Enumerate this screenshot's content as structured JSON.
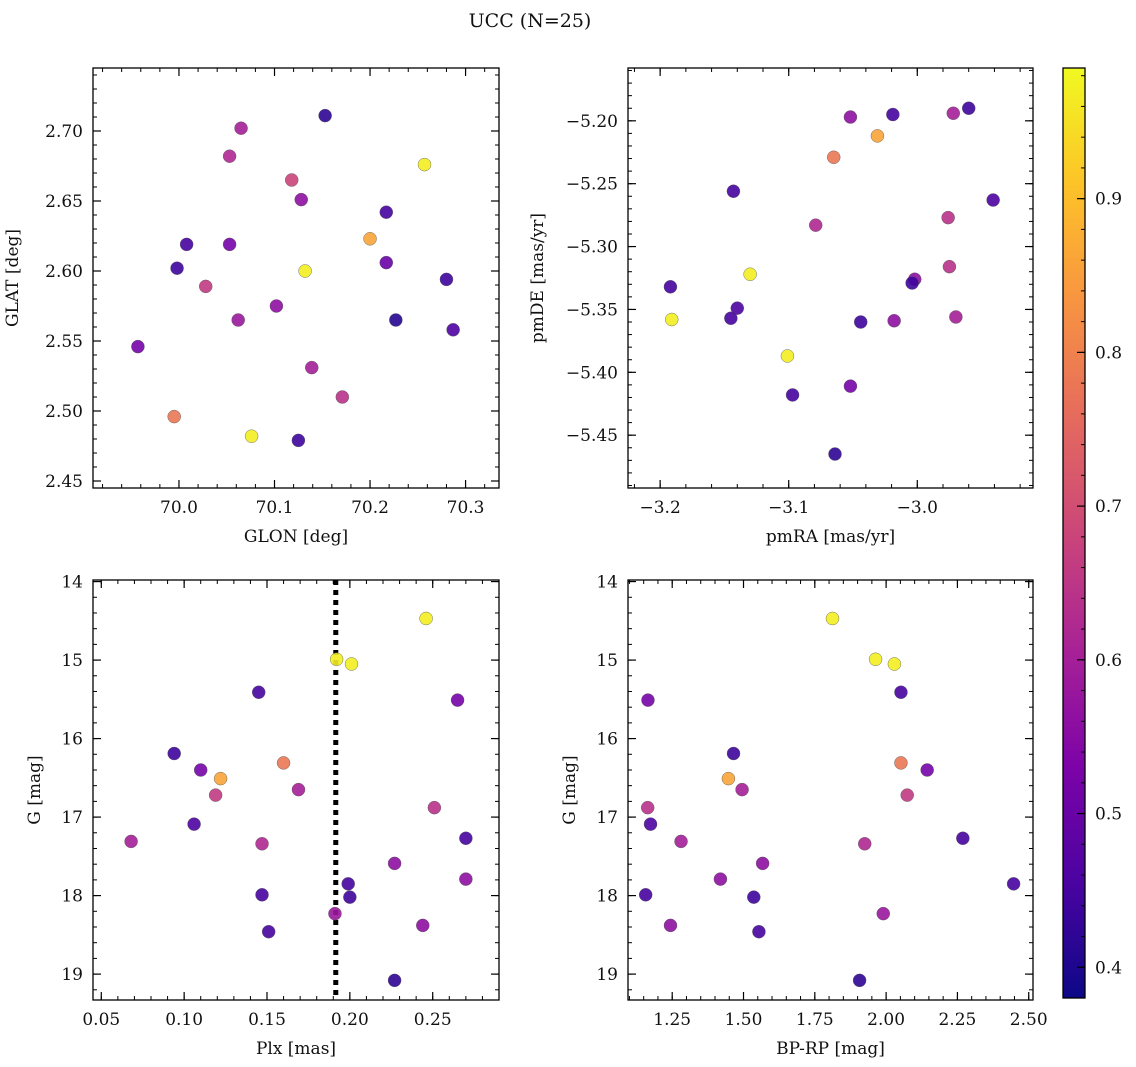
{
  "figure": {
    "title": "UCC (N=25)"
  },
  "colorbar": {
    "colormap": "plasma",
    "vmin": 0.38,
    "vmax": 0.985,
    "ticks": [
      0.4,
      0.5,
      0.6,
      0.7,
      0.8,
      0.9
    ]
  },
  "chart_data": [
    {
      "type": "scatter",
      "name": "glon-glat",
      "xlabel": "GLON [deg]",
      "ylabel": "GLAT [deg]",
      "xlim": [
        69.91,
        70.335
      ],
      "ylim": [
        2.445,
        2.745
      ],
      "xticks": [
        70.0,
        70.1,
        70.2,
        70.3
      ],
      "xtick_labels": [
        "70.0",
        "70.1",
        "70.2",
        "70.3"
      ],
      "yticks": [
        2.45,
        2.5,
        2.55,
        2.6,
        2.65,
        2.7
      ],
      "ytick_labels": [
        "2.45",
        "2.50",
        "2.55",
        "2.60",
        "2.65",
        "2.70"
      ],
      "y_inverted": false,
      "points": [
        {
          "x": 70.153,
          "y": 2.711,
          "c": 0.42
        },
        {
          "x": 70.065,
          "y": 2.702,
          "c": 0.6
        },
        {
          "x": 70.053,
          "y": 2.682,
          "c": 0.62
        },
        {
          "x": 70.257,
          "y": 2.676,
          "c": 0.97
        },
        {
          "x": 70.118,
          "y": 2.665,
          "c": 0.68
        },
        {
          "x": 70.128,
          "y": 2.651,
          "c": 0.56
        },
        {
          "x": 70.217,
          "y": 2.642,
          "c": 0.45
        },
        {
          "x": 70.2,
          "y": 2.623,
          "c": 0.86
        },
        {
          "x": 70.008,
          "y": 2.619,
          "c": 0.45
        },
        {
          "x": 70.053,
          "y": 2.619,
          "c": 0.52
        },
        {
          "x": 70.217,
          "y": 2.606,
          "c": 0.5
        },
        {
          "x": 69.998,
          "y": 2.602,
          "c": 0.44
        },
        {
          "x": 70.132,
          "y": 2.6,
          "c": 0.97
        },
        {
          "x": 70.28,
          "y": 2.594,
          "c": 0.44
        },
        {
          "x": 70.028,
          "y": 2.589,
          "c": 0.66
        },
        {
          "x": 70.102,
          "y": 2.575,
          "c": 0.56
        },
        {
          "x": 70.062,
          "y": 2.565,
          "c": 0.58
        },
        {
          "x": 70.227,
          "y": 2.565,
          "c": 0.41
        },
        {
          "x": 70.287,
          "y": 2.558,
          "c": 0.46
        },
        {
          "x": 69.957,
          "y": 2.546,
          "c": 0.52
        },
        {
          "x": 70.139,
          "y": 2.531,
          "c": 0.6
        },
        {
          "x": 70.171,
          "y": 2.51,
          "c": 0.64
        },
        {
          "x": 69.995,
          "y": 2.496,
          "c": 0.78
        },
        {
          "x": 70.076,
          "y": 2.482,
          "c": 0.97
        },
        {
          "x": 70.125,
          "y": 2.479,
          "c": 0.44
        }
      ]
    },
    {
      "type": "scatter",
      "name": "pmra-pmde",
      "xlabel": "pmRA [mas/yr]",
      "ylabel": "pmDE [mas/yr]",
      "xlim": [
        -3.225,
        -2.91
      ],
      "ylim": [
        -5.492,
        -5.158
      ],
      "xticks": [
        -3.2,
        -3.1,
        -3.0
      ],
      "xtick_labels": [
        "−3.2",
        "−3.1",
        "−3.0"
      ],
      "yticks": [
        -5.45,
        -5.4,
        -5.35,
        -5.3,
        -5.25,
        -5.2
      ],
      "ytick_labels": [
        "−5.45",
        "−5.40",
        "−5.35",
        "−5.30",
        "−5.25",
        "−5.20"
      ],
      "y_inverted": false,
      "points": [
        {
          "x": -2.96,
          "y": -5.19,
          "c": 0.44
        },
        {
          "x": -2.972,
          "y": -5.194,
          "c": 0.6
        },
        {
          "x": -3.019,
          "y": -5.195,
          "c": 0.45
        },
        {
          "x": -3.052,
          "y": -5.197,
          "c": 0.56
        },
        {
          "x": -3.031,
          "y": -5.212,
          "c": 0.86
        },
        {
          "x": -3.065,
          "y": -5.229,
          "c": 0.78
        },
        {
          "x": -3.143,
          "y": -5.256,
          "c": 0.45
        },
        {
          "x": -2.941,
          "y": -5.263,
          "c": 0.46
        },
        {
          "x": -2.976,
          "y": -5.277,
          "c": 0.64
        },
        {
          "x": -3.079,
          "y": -5.283,
          "c": 0.62
        },
        {
          "x": -3.13,
          "y": -5.322,
          "c": 0.97
        },
        {
          "x": -2.975,
          "y": -5.316,
          "c": 0.64
        },
        {
          "x": -3.002,
          "y": -5.326,
          "c": 0.56
        },
        {
          "x": -3.004,
          "y": -5.329,
          "c": 0.44
        },
        {
          "x": -3.192,
          "y": -5.332,
          "c": 0.45
        },
        {
          "x": -3.14,
          "y": -5.349,
          "c": 0.46
        },
        {
          "x": -3.145,
          "y": -5.357,
          "c": 0.45
        },
        {
          "x": -3.191,
          "y": -5.358,
          "c": 0.97
        },
        {
          "x": -2.97,
          "y": -5.356,
          "c": 0.6
        },
        {
          "x": -3.018,
          "y": -5.359,
          "c": 0.56
        },
        {
          "x": -3.044,
          "y": -5.36,
          "c": 0.44
        },
        {
          "x": -3.101,
          "y": -5.387,
          "c": 0.97
        },
        {
          "x": -3.052,
          "y": -5.411,
          "c": 0.52
        },
        {
          "x": -3.097,
          "y": -5.418,
          "c": 0.45
        },
        {
          "x": -3.064,
          "y": -5.465,
          "c": 0.42
        }
      ]
    },
    {
      "type": "scatter",
      "name": "plx-g",
      "xlabel": "Plx [mas]",
      "ylabel": "G [mag]",
      "xlim": [
        0.045,
        0.29
      ],
      "ylim": [
        19.33,
        13.98
      ],
      "xticks": [
        0.05,
        0.1,
        0.15,
        0.2,
        0.25
      ],
      "xtick_labels": [
        "0.05",
        "0.10",
        "0.15",
        "0.20",
        "0.25"
      ],
      "yticks": [
        14,
        15,
        16,
        17,
        18,
        19
      ],
      "ytick_labels": [
        "14",
        "15",
        "16",
        "17",
        "18",
        "19"
      ],
      "y_inverted": true,
      "vline": 0.1915,
      "points": [
        {
          "x": 0.246,
          "y": 14.47,
          "c": 0.97
        },
        {
          "x": 0.192,
          "y": 14.99,
          "c": 0.97
        },
        {
          "x": 0.201,
          "y": 15.05,
          "c": 0.97
        },
        {
          "x": 0.145,
          "y": 15.41,
          "c": 0.45
        },
        {
          "x": 0.265,
          "y": 15.51,
          "c": 0.52
        },
        {
          "x": 0.094,
          "y": 16.19,
          "c": 0.44
        },
        {
          "x": 0.16,
          "y": 16.31,
          "c": 0.78
        },
        {
          "x": 0.11,
          "y": 16.4,
          "c": 0.52
        },
        {
          "x": 0.122,
          "y": 16.51,
          "c": 0.86
        },
        {
          "x": 0.169,
          "y": 16.65,
          "c": 0.6
        },
        {
          "x": 0.119,
          "y": 16.72,
          "c": 0.66
        },
        {
          "x": 0.251,
          "y": 16.88,
          "c": 0.64
        },
        {
          "x": 0.106,
          "y": 17.09,
          "c": 0.46
        },
        {
          "x": 0.27,
          "y": 17.27,
          "c": 0.45
        },
        {
          "x": 0.068,
          "y": 17.31,
          "c": 0.6
        },
        {
          "x": 0.147,
          "y": 17.34,
          "c": 0.62
        },
        {
          "x": 0.227,
          "y": 17.59,
          "c": 0.56
        },
        {
          "x": 0.27,
          "y": 17.79,
          "c": 0.56
        },
        {
          "x": 0.199,
          "y": 17.85,
          "c": 0.45
        },
        {
          "x": 0.147,
          "y": 17.99,
          "c": 0.45
        },
        {
          "x": 0.2,
          "y": 18.02,
          "c": 0.44
        },
        {
          "x": 0.191,
          "y": 18.23,
          "c": 0.58
        },
        {
          "x": 0.244,
          "y": 18.38,
          "c": 0.56
        },
        {
          "x": 0.151,
          "y": 18.46,
          "c": 0.45
        },
        {
          "x": 0.227,
          "y": 19.08,
          "c": 0.42
        }
      ]
    },
    {
      "type": "scatter",
      "name": "bprp-g",
      "xlabel": "BP-RP [mag]",
      "ylabel": "G [mag]",
      "xlim": [
        1.095,
        2.515
      ],
      "ylim": [
        19.33,
        13.98
      ],
      "xticks": [
        1.25,
        1.5,
        1.75,
        2.0,
        2.25,
        2.5
      ],
      "xtick_labels": [
        "1.25",
        "1.50",
        "1.75",
        "2.00",
        "2.25",
        "2.50"
      ],
      "yticks": [
        14,
        15,
        16,
        17,
        18,
        19
      ],
      "ytick_labels": [
        "14",
        "15",
        "16",
        "17",
        "18",
        "19"
      ],
      "y_inverted": true,
      "points": [
        {
          "x": 1.812,
          "y": 14.47,
          "c": 0.97
        },
        {
          "x": 1.963,
          "y": 14.99,
          "c": 0.97
        },
        {
          "x": 2.029,
          "y": 15.05,
          "c": 0.97
        },
        {
          "x": 2.052,
          "y": 15.41,
          "c": 0.45
        },
        {
          "x": 1.165,
          "y": 15.51,
          "c": 0.52
        },
        {
          "x": 1.465,
          "y": 16.19,
          "c": 0.44
        },
        {
          "x": 2.052,
          "y": 16.31,
          "c": 0.78
        },
        {
          "x": 2.144,
          "y": 16.4,
          "c": 0.52
        },
        {
          "x": 1.447,
          "y": 16.51,
          "c": 0.86
        },
        {
          "x": 1.495,
          "y": 16.65,
          "c": 0.6
        },
        {
          "x": 2.074,
          "y": 16.72,
          "c": 0.66
        },
        {
          "x": 1.164,
          "y": 16.88,
          "c": 0.64
        },
        {
          "x": 1.174,
          "y": 17.09,
          "c": 0.46
        },
        {
          "x": 2.269,
          "y": 17.27,
          "c": 0.45
        },
        {
          "x": 1.281,
          "y": 17.31,
          "c": 0.6
        },
        {
          "x": 1.925,
          "y": 17.34,
          "c": 0.62
        },
        {
          "x": 1.567,
          "y": 17.59,
          "c": 0.56
        },
        {
          "x": 1.419,
          "y": 17.79,
          "c": 0.56
        },
        {
          "x": 2.447,
          "y": 17.85,
          "c": 0.45
        },
        {
          "x": 1.157,
          "y": 17.99,
          "c": 0.45
        },
        {
          "x": 1.536,
          "y": 18.02,
          "c": 0.44
        },
        {
          "x": 1.99,
          "y": 18.23,
          "c": 0.58
        },
        {
          "x": 1.244,
          "y": 18.38,
          "c": 0.56
        },
        {
          "x": 1.554,
          "y": 18.46,
          "c": 0.45
        },
        {
          "x": 1.907,
          "y": 19.08,
          "c": 0.42
        }
      ]
    }
  ]
}
